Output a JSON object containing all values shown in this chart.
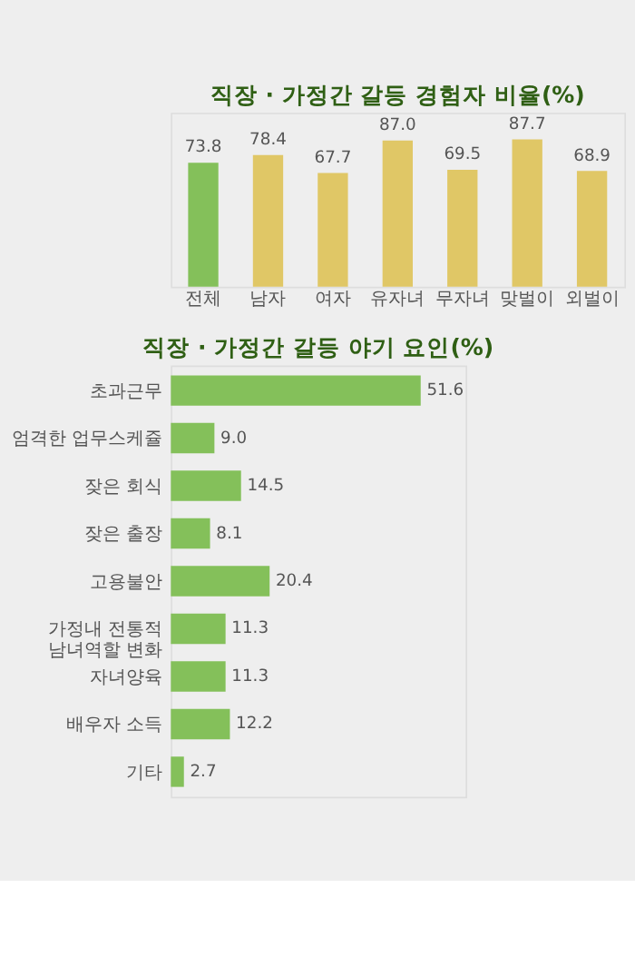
{
  "chart_data": [
    {
      "type": "bar",
      "title": "직장 · 가정간 갈등 경험자 비율(%)",
      "categories": [
        "전체",
        "남자",
        "여자",
        "유자녀",
        "무자녀",
        "맞벌이",
        "외벌이"
      ],
      "values": [
        73.8,
        78.4,
        67.7,
        87.0,
        69.5,
        87.7,
        68.9
      ],
      "value_labels": [
        "73.8",
        "78.4",
        "67.7",
        "87.0",
        "69.5",
        "87.7",
        "68.9"
      ],
      "colors": [
        "#84c05a",
        "#e0c766",
        "#e0c766",
        "#e0c766",
        "#e0c766",
        "#e0c766",
        "#e0c766"
      ]
    },
    {
      "type": "bar",
      "orientation": "horizontal",
      "title": "직장 · 가정간 갈등 야기 요인(%)",
      "categories": [
        "초과근무",
        "엄격한 업무스케쥴",
        "잦은 회식",
        "잦은 출장",
        "고용불안",
        "가정내 전통적\n남녀역할 변화",
        "자녀양육",
        "배우자 소득",
        "기타"
      ],
      "values": [
        51.6,
        9.0,
        14.5,
        8.1,
        20.4,
        11.3,
        11.3,
        12.2,
        2.7
      ],
      "value_labels": [
        "51.6",
        "9.0",
        "14.5",
        "8.1",
        "20.4",
        "11.3",
        "11.3",
        "12.2",
        "2.7"
      ],
      "colors": [
        "#84c05a",
        "#84c05a",
        "#84c05a",
        "#84c05a",
        "#84c05a",
        "#84c05a",
        "#84c05a",
        "#84c05a",
        "#84c05a"
      ]
    }
  ]
}
